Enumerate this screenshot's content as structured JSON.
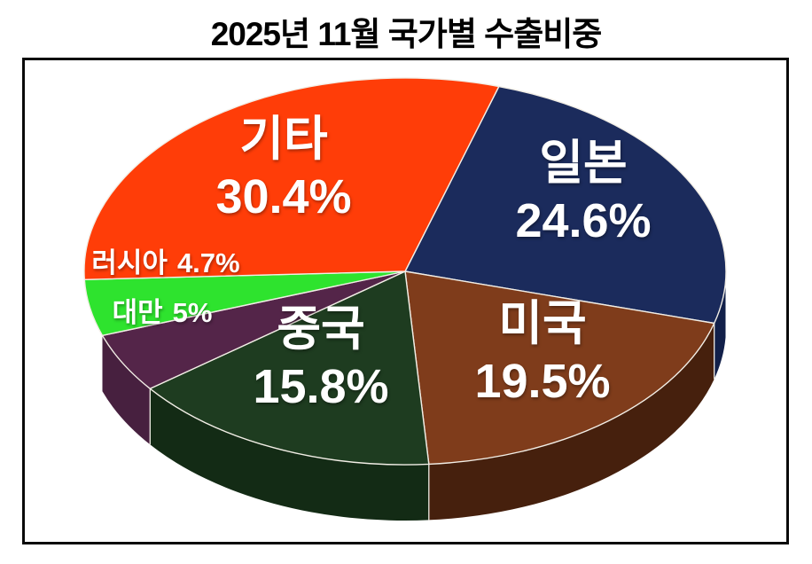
{
  "title": "2025년 11월 국가별 수출비중",
  "chart_data": {
    "type": "pie",
    "style": "3d",
    "title": "2025년 11월 국가별 수출비중",
    "unit": "%",
    "direction": "clockwise",
    "start_angle_deg": 73,
    "legend": "none",
    "background": "#FFFFFF",
    "frame_border_color": "#0A0A0A",
    "slice_outline_color": "#F2EEE6",
    "label_text_color": "#FFFFFF",
    "slices": [
      {
        "id": "japan",
        "label": "일본",
        "value": 24.6,
        "value_text": "24.6%",
        "color": "#1B2B5C",
        "side_color": "#12204A"
      },
      {
        "id": "usa",
        "label": "미국",
        "value": 19.5,
        "value_text": "19.5%",
        "color": "#7F3C1B",
        "side_color": "#46200D"
      },
      {
        "id": "china",
        "label": "중국",
        "value": 15.8,
        "value_text": "15.8%",
        "color": "#1E3C20",
        "side_color": "#132B15"
      },
      {
        "id": "taiwan",
        "label": "대만",
        "value": 5,
        "value_text": "5%",
        "color": "#542549",
        "side_color": "#47203F"
      },
      {
        "id": "russia",
        "label": "러시아",
        "value": 4.7,
        "value_text": "4.7%",
        "color": "#2EE32E",
        "side_color": "#1F9E1F"
      },
      {
        "id": "others",
        "label": "기타",
        "value": 30.4,
        "value_text": "30.4%",
        "color": "#FF3D08",
        "side_color": "#B22A05"
      }
    ]
  }
}
